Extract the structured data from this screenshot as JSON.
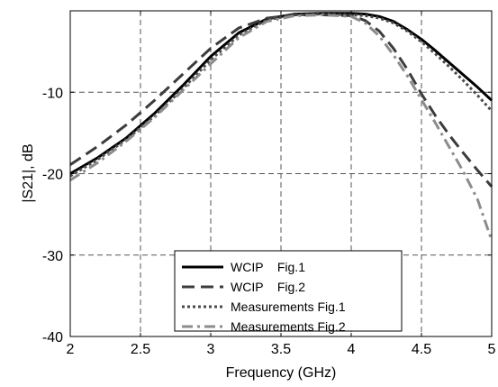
{
  "chart_data": {
    "type": "line",
    "title": "",
    "xlabel": "Frequency (GHz)",
    "ylabel": "|S21|, dB",
    "xlim": [
      2,
      5
    ],
    "ylim": [
      -40,
      0
    ],
    "grid": true,
    "legend_position": "bottom-center",
    "x_ticks": [
      2,
      2.5,
      3,
      3.5,
      4,
      4.5,
      5
    ],
    "x_tick_labels": [
      "2",
      "2.5",
      "3",
      "3.5",
      "4",
      "4.5",
      "5"
    ],
    "y_ticks": [
      -40,
      -30,
      -20,
      -10
    ],
    "y_tick_labels": [
      "-40",
      "-30",
      "-20",
      "-10"
    ],
    "series": [
      {
        "name": "WCIP    Fig.1",
        "color": "#000000",
        "dash": "solid",
        "x": [
          2.0,
          2.2,
          2.4,
          2.6,
          2.8,
          3.0,
          3.2,
          3.4,
          3.6,
          3.8,
          4.0,
          4.1,
          4.2,
          4.3,
          4.4,
          4.5,
          4.6,
          4.7,
          4.8,
          4.9,
          5.0
        ],
        "y": [
          -20.0,
          -18.0,
          -15.6,
          -12.6,
          -9.2,
          -5.6,
          -2.7,
          -1.0,
          -0.4,
          -0.3,
          -0.3,
          -0.4,
          -0.7,
          -1.3,
          -2.3,
          -3.5,
          -4.9,
          -6.4,
          -7.9,
          -9.4,
          -11.0
        ]
      },
      {
        "name": "WCIP    Fig.2",
        "color": "#3c3c3c",
        "dash": "long-dash",
        "x": [
          2.0,
          2.2,
          2.4,
          2.6,
          2.8,
          3.0,
          3.2,
          3.4,
          3.6,
          3.8,
          4.0,
          4.1,
          4.2,
          4.3,
          4.4,
          4.5,
          4.6,
          4.7,
          4.8,
          4.9,
          5.0
        ],
        "y": [
          -18.9,
          -16.6,
          -14.0,
          -11.0,
          -7.8,
          -4.6,
          -2.1,
          -0.9,
          -0.5,
          -0.5,
          -0.6,
          -1.2,
          -2.5,
          -4.6,
          -7.2,
          -10.2,
          -12.9,
          -15.3,
          -17.5,
          -19.6,
          -21.6
        ]
      },
      {
        "name": "Measurements Fig.1",
        "color": "#4a4a4a",
        "dash": "dotted",
        "x": [
          2.0,
          2.2,
          2.4,
          2.6,
          2.8,
          3.0,
          3.2,
          3.4,
          3.6,
          3.8,
          4.0,
          4.1,
          4.2,
          4.3,
          4.4,
          4.5,
          4.6,
          4.7,
          4.8,
          4.9,
          5.0
        ],
        "y": [
          -20.3,
          -18.2,
          -15.8,
          -12.9,
          -9.6,
          -6.0,
          -3.0,
          -1.1,
          -0.5,
          -0.4,
          -0.5,
          -0.6,
          -0.9,
          -1.5,
          -2.5,
          -3.8,
          -5.3,
          -6.9,
          -8.6,
          -10.4,
          -12.3
        ]
      },
      {
        "name": "Measurements Fig.2",
        "color": "#8c8c8c",
        "dash": "dash-dot",
        "x": [
          2.0,
          2.2,
          2.4,
          2.6,
          2.8,
          3.0,
          3.2,
          3.4,
          3.6,
          3.8,
          4.0,
          4.1,
          4.2,
          4.3,
          4.4,
          4.5,
          4.6,
          4.7,
          4.8,
          4.9,
          5.0
        ],
        "y": [
          -20.8,
          -18.6,
          -16.0,
          -13.1,
          -9.8,
          -6.5,
          -3.3,
          -1.3,
          -0.6,
          -0.5,
          -0.7,
          -1.5,
          -3.1,
          -5.4,
          -8.0,
          -10.9,
          -13.8,
          -16.8,
          -19.8,
          -23.2,
          -28.2
        ]
      }
    ]
  }
}
